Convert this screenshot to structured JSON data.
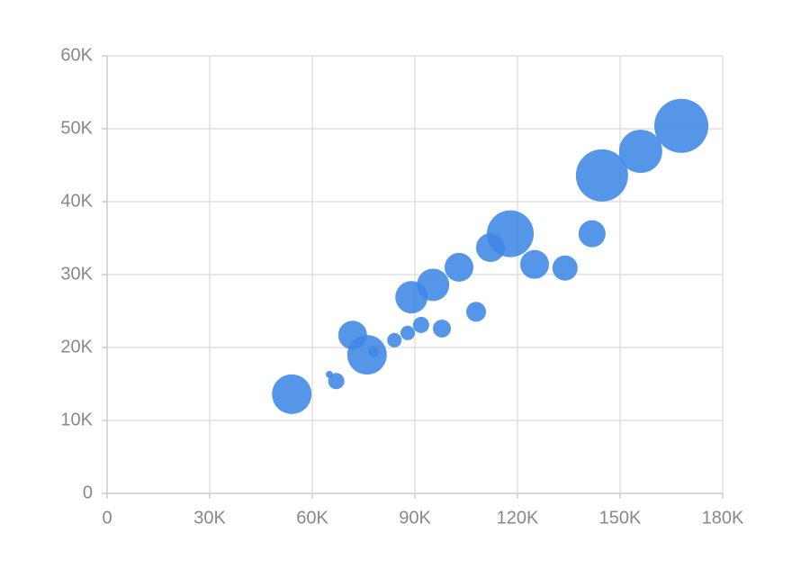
{
  "chart_data": {
    "type": "bubble",
    "color": "#3d87e6",
    "grid": true,
    "x": [
      54000,
      65000,
      67000,
      71800,
      76000,
      77900,
      84000,
      87900,
      91800,
      89000,
      95300,
      97900,
      102900,
      107900,
      112100,
      117900,
      125000,
      133900,
      141800,
      144700,
      156000,
      167900
    ],
    "values": [
      13600,
      16300,
      15400,
      21700,
      19000,
      19500,
      21000,
      22000,
      23100,
      26900,
      28600,
      22600,
      31000,
      24900,
      33700,
      35600,
      31400,
      30900,
      35600,
      43600,
      46900,
      50400
    ],
    "sizes": [
      22,
      4,
      9,
      16,
      22,
      6,
      8,
      8,
      9,
      18,
      18,
      10,
      16,
      11,
      16,
      26,
      16,
      14,
      15,
      29,
      24,
      30
    ],
    "xlim": [
      0,
      180000
    ],
    "xticks": [
      0,
      {
        "value": 30000,
        "label": "30K"
      },
      {
        "value": 60000,
        "label": "60K"
      },
      {
        "value": 90000,
        "label": "90K"
      },
      {
        "value": 120000,
        "label": "120K"
      },
      {
        "value": 150000,
        "label": "150K"
      },
      {
        "value": 180000,
        "label": "180K"
      }
    ],
    "ylim": [
      0,
      60000
    ],
    "yticks": [
      0,
      {
        "value": 10000,
        "label": "10K"
      },
      {
        "value": 20000,
        "label": "20K"
      },
      {
        "value": 30000,
        "label": "30K"
      },
      {
        "value": 40000,
        "label": "40K"
      },
      {
        "value": 50000,
        "label": "50K"
      },
      {
        "value": 60000,
        "label": "60K"
      }
    ]
  }
}
